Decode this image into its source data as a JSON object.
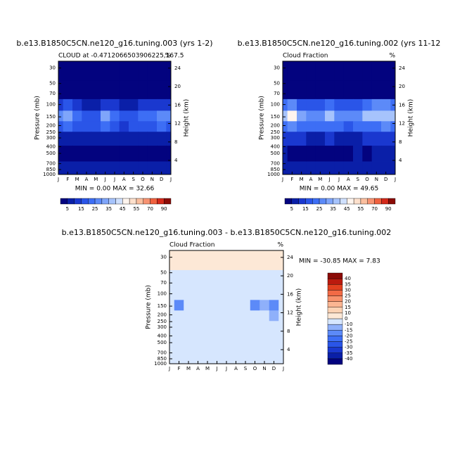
{
  "chart_data": [
    {
      "type": "contour",
      "title": "b.e13.B1850C5CN.ne120_g16.tuning.003 (yrs 1-2)",
      "subtitle": "CLOUD at -0.4712066503906225,167.5",
      "units": "%",
      "stats": "MIN =   0.00 MAX =  32.66",
      "ylabel": "Pressure (mb)",
      "y2label": "Height (km)",
      "ylog": true,
      "categories": [
        "J",
        "F",
        "M",
        "A",
        "M",
        "J",
        "J",
        "A",
        "S",
        "O",
        "N",
        "D",
        "J"
      ],
      "pressure": [
        30,
        70,
        100,
        150,
        200,
        300,
        500,
        850
      ],
      "z": [
        [
          2,
          2,
          2,
          2,
          2,
          2,
          2,
          2,
          2,
          2,
          2,
          2,
          2
        ],
        [
          3,
          3,
          3,
          3,
          3,
          3,
          3,
          3,
          3,
          3,
          3,
          3,
          3
        ],
        [
          12,
          15,
          10,
          8,
          9,
          10,
          10,
          9,
          8,
          10,
          12,
          12,
          12
        ],
        [
          25,
          32,
          22,
          15,
          18,
          30,
          20,
          18,
          18,
          22,
          22,
          28,
          25
        ],
        [
          18,
          22,
          18,
          15,
          16,
          22,
          16,
          14,
          15,
          18,
          18,
          20,
          18
        ],
        [
          6,
          8,
          7,
          6,
          6,
          8,
          6,
          5,
          5,
          6,
          7,
          7,
          6
        ],
        [
          2,
          2,
          2,
          2,
          2,
          2,
          2,
          2,
          2,
          2,
          2,
          2,
          2
        ],
        [
          7,
          7,
          7,
          7,
          7,
          7,
          7,
          7,
          7,
          7,
          7,
          7,
          7
        ]
      ],
      "ylim": [
        1000,
        24
      ],
      "yticks": [
        30,
        50,
        70,
        100,
        150,
        200,
        250,
        300,
        400,
        500,
        700,
        850,
        1000
      ],
      "y2lim": [
        0.95,
        25.5
      ],
      "y2ticks": [
        4,
        8,
        12,
        16,
        20,
        24
      ],
      "levels": [
        5,
        10,
        15,
        20,
        25,
        30,
        35,
        40,
        45,
        50,
        55,
        60,
        70,
        80,
        90
      ],
      "colors": [
        "#03037f",
        "#0a1fa8",
        "#1a38cf",
        "#2a55e8",
        "#3d6ef5",
        "#5c8af8",
        "#7fa5fa",
        "#a6c3fc",
        "#cfe0fe",
        "#fff5ee",
        "#fde0cc",
        "#fbbf9f",
        "#f79372",
        "#f0613f",
        "#d4291a",
        "#8b0b06"
      ]
    },
    {
      "type": "contour",
      "title": "b.e13.B1850C5CN.ne120_g16.tuning.002 (yrs 11-12",
      "subtitle": "Cloud Fraction",
      "units": "%",
      "stats": "MIN =   0.00 MAX =  49.65",
      "ylabel": "Pressure (mb)",
      "y2label": "Height (km)",
      "ylog": true,
      "categories": [
        "J",
        "F",
        "M",
        "A",
        "M",
        "J",
        "J",
        "A",
        "S",
        "O",
        "N",
        "D",
        "J"
      ],
      "pressure": [
        30,
        70,
        100,
        150,
        200,
        300,
        500,
        850
      ],
      "z": [
        [
          2,
          2,
          2,
          2,
          2,
          2,
          2,
          2,
          2,
          2,
          2,
          2,
          2
        ],
        [
          4,
          4,
          4,
          4,
          4,
          4,
          4,
          4,
          4,
          4,
          4,
          4,
          4
        ],
        [
          20,
          25,
          18,
          15,
          16,
          20,
          18,
          16,
          18,
          22,
          25,
          25,
          20
        ],
        [
          35,
          48,
          30,
          25,
          28,
          35,
          28,
          25,
          28,
          35,
          38,
          35,
          35
        ],
        [
          22,
          28,
          22,
          20,
          20,
          22,
          20,
          18,
          20,
          22,
          24,
          25,
          22
        ],
        [
          10,
          12,
          10,
          9,
          9,
          10,
          9,
          8,
          9,
          10,
          11,
          10,
          10
        ],
        [
          6,
          4,
          4,
          4,
          4,
          4,
          4,
          4,
          6,
          4,
          6,
          7,
          6
        ],
        [
          8,
          8,
          8,
          8,
          8,
          8,
          8,
          8,
          8,
          8,
          8,
          8,
          8
        ]
      ],
      "ylim": [
        1000,
        24
      ],
      "yticks": [
        30,
        50,
        70,
        100,
        150,
        200,
        250,
        300,
        400,
        500,
        700,
        850,
        1000
      ],
      "y2lim": [
        0.95,
        25.5
      ],
      "y2ticks": [
        4,
        8,
        12,
        16,
        20,
        24
      ],
      "levels": [
        5,
        10,
        15,
        20,
        25,
        30,
        35,
        40,
        45,
        50,
        55,
        60,
        70,
        80,
        90
      ],
      "colors": [
        "#03037f",
        "#0a1fa8",
        "#1a38cf",
        "#2a55e8",
        "#3d6ef5",
        "#5c8af8",
        "#7fa5fa",
        "#a6c3fc",
        "#cfe0fe",
        "#fff5ee",
        "#fde0cc",
        "#fbbf9f",
        "#f79372",
        "#f0613f",
        "#d4291a",
        "#8b0b06"
      ]
    },
    {
      "type": "contour",
      "title": "b.e13.B1850C5CN.ne120_g16.tuning.003 - b.e13.B1850C5CN.ne120_g16.tuning.002",
      "subtitle": "Cloud Fraction",
      "units": "%",
      "stats": "MIN = -30.85 MAX =   7.83",
      "ylabel": "Pressure (mb)",
      "y2label": "Height (km)",
      "ylog": true,
      "categories": [
        "J",
        "F",
        "M",
        "A",
        "M",
        "J",
        "J",
        "A",
        "S",
        "O",
        "N",
        "D",
        "J"
      ],
      "pressure": [
        30,
        70,
        100,
        150,
        200,
        300,
        500,
        850
      ],
      "z": [
        [
          3,
          3,
          1,
          1,
          1,
          2,
          2,
          2,
          2,
          2,
          2,
          2,
          2
        ],
        [
          -2,
          -5,
          -1,
          -1,
          -1,
          -1,
          -1,
          -1,
          -1,
          -1,
          -1,
          -1,
          -1
        ],
        [
          -6,
          -8,
          -6,
          -5,
          -5,
          -8,
          -6,
          -5,
          -7,
          -10,
          -9,
          -9,
          -6
        ],
        [
          -10,
          -16,
          -8,
          -8,
          -6,
          -6,
          -8,
          -7,
          -10,
          -20,
          -12,
          -18,
          -10
        ],
        [
          -4,
          -6,
          -4,
          -5,
          -4,
          -2,
          -4,
          -4,
          -5,
          -10,
          -6,
          -12,
          -4
        ],
        [
          -4,
          -4,
          -3,
          -3,
          -3,
          -2,
          -3,
          -3,
          -4,
          -4,
          -4,
          -3,
          -4
        ],
        [
          -4,
          -2,
          -2,
          -2,
          -2,
          -2,
          -2,
          -2,
          -4,
          -2,
          -4,
          -5,
          -4
        ],
        [
          -1,
          -1,
          -1,
          -1,
          -1,
          -1,
          -1,
          -1,
          -1,
          -1,
          -1,
          -1,
          -1
        ]
      ],
      "ylim": [
        1000,
        24
      ],
      "yticks": [
        30,
        50,
        70,
        100,
        150,
        200,
        250,
        300,
        400,
        500,
        700,
        850,
        1000
      ],
      "y2lim": [
        0.95,
        25.5
      ],
      "y2ticks": [
        4,
        8,
        12,
        16,
        20,
        24
      ],
      "levels": [
        -40,
        -35,
        -30,
        -25,
        -20,
        -15,
        -10,
        0,
        10,
        15,
        20,
        25,
        30,
        35,
        40
      ],
      "colors": [
        "#03037f",
        "#0a1fa8",
        "#1a38cf",
        "#2a55e8",
        "#3d6ef5",
        "#5c8af8",
        "#8fb0fa",
        "#d6e6fe",
        "#fde8d6",
        "#fcd2b4",
        "#fbb592",
        "#f8926c",
        "#f26a45",
        "#e2401f",
        "#bb1a0e",
        "#8b0b06"
      ]
    }
  ]
}
